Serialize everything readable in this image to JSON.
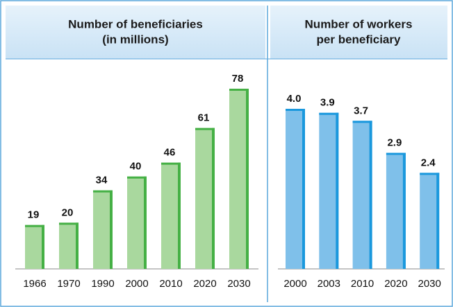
{
  "chart_data": [
    {
      "type": "bar",
      "title": [
        "Number of beneficiaries",
        "(in millions)"
      ],
      "categories": [
        "1966",
        "1970",
        "1990",
        "2000",
        "2010",
        "2020",
        "2030"
      ],
      "values": [
        19,
        20,
        34,
        40,
        46,
        61,
        78
      ],
      "color": "#a9d89e",
      "edge_color": "#45b045"
    },
    {
      "type": "bar",
      "title": [
        "Number of workers",
        "per beneficiary"
      ],
      "categories": [
        "2000",
        "2003",
        "2010",
        "2020",
        "2030"
      ],
      "values": [
        4.0,
        3.9,
        3.7,
        2.9,
        2.4
      ],
      "value_labels": [
        "4.0",
        "3.9",
        "3.7",
        "2.9",
        "2.4"
      ],
      "color": "#7fc0ea",
      "edge_color": "#1a98dd"
    }
  ]
}
